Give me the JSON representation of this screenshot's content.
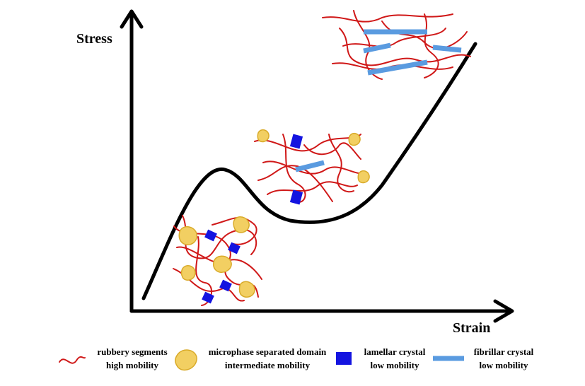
{
  "axes": {
    "y_label": "Stress",
    "x_label": "Strain"
  },
  "legend": [
    {
      "label": "rubbery segments",
      "mobility": "high mobility"
    },
    {
      "label": "microphase separated domain",
      "mobility": "intermediate mobility"
    },
    {
      "label": "lamellar crystal",
      "mobility": "low mobility"
    },
    {
      "label": "fibrillar crystal",
      "mobility": "low mobility"
    }
  ]
}
